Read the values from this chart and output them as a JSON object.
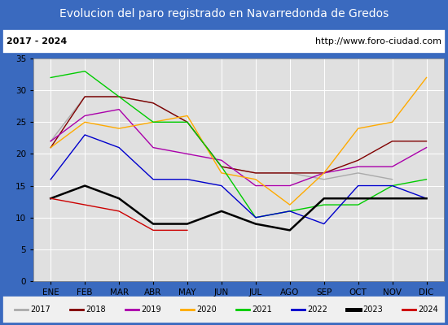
{
  "title": "Evolucion del paro registrado en Navarredonda de Gredos",
  "subtitle_left": "2017 - 2024",
  "subtitle_right": "http://www.foro-ciudad.com",
  "ylim": [
    0,
    35
  ],
  "yticks": [
    0,
    5,
    10,
    15,
    20,
    25,
    30,
    35
  ],
  "months": [
    "ENE",
    "FEB",
    "MAR",
    "ABR",
    "MAY",
    "JUN",
    "JUL",
    "AGO",
    "SEP",
    "OCT",
    "NOV",
    "DIC"
  ],
  "series": [
    {
      "year": "2017",
      "color": "#aaaaaa",
      "linewidth": 1.0,
      "linestyle": "-",
      "data": [
        22,
        29,
        29,
        28,
        25,
        18,
        17,
        17,
        16,
        17,
        16,
        null
      ]
    },
    {
      "year": "2018",
      "color": "#800000",
      "linewidth": 1.0,
      "linestyle": "-",
      "data": [
        21,
        29,
        29,
        28,
        25,
        18,
        17,
        17,
        17,
        19,
        22,
        22
      ]
    },
    {
      "year": "2019",
      "color": "#aa00aa",
      "linewidth": 1.0,
      "linestyle": "-",
      "data": [
        22,
        26,
        27,
        21,
        20,
        19,
        15,
        15,
        17,
        18,
        18,
        21
      ]
    },
    {
      "year": "2020",
      "color": "#ffaa00",
      "linewidth": 1.0,
      "linestyle": "-",
      "data": [
        21,
        25,
        24,
        25,
        26,
        17,
        16,
        12,
        17,
        24,
        25,
        32
      ]
    },
    {
      "year": "2021",
      "color": "#00cc00",
      "linewidth": 1.0,
      "linestyle": "-",
      "data": [
        32,
        33,
        29,
        25,
        25,
        18,
        10,
        11,
        12,
        12,
        15,
        16
      ]
    },
    {
      "year": "2022",
      "color": "#0000cc",
      "linewidth": 1.0,
      "linestyle": "-",
      "data": [
        16,
        23,
        21,
        16,
        16,
        15,
        10,
        11,
        9,
        15,
        15,
        13
      ]
    },
    {
      "year": "2023",
      "color": "#000000",
      "linewidth": 1.8,
      "linestyle": "-",
      "data": [
        13,
        15,
        13,
        9,
        9,
        11,
        9,
        8,
        13,
        13,
        13,
        13
      ]
    },
    {
      "year": "2024",
      "color": "#cc0000",
      "linewidth": 1.0,
      "linestyle": "-",
      "data": [
        13,
        12,
        11,
        8,
        8,
        null,
        null,
        null,
        null,
        null,
        null,
        null
      ]
    }
  ],
  "title_bg_color": "#3a6abf",
  "title_font_color": "#ffffff",
  "title_fontsize": 10,
  "subtitle_fontsize": 8,
  "plot_bg_color": "#e0e0e0",
  "frame_color": "#3a6abf",
  "legend_bg_color": "#f0f0f0",
  "tick_fontsize": 7.5
}
